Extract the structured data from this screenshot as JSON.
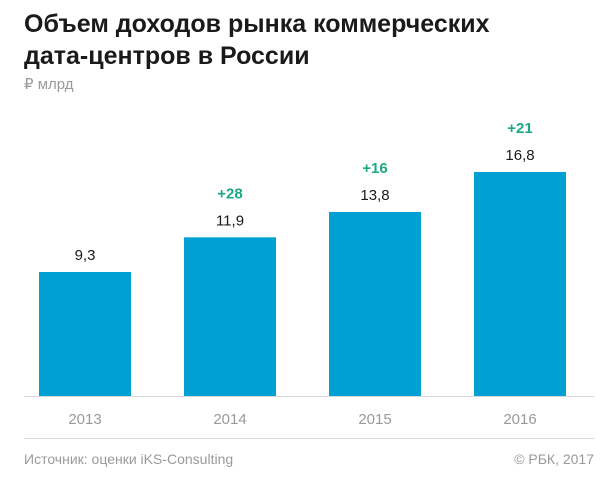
{
  "title_lines": [
    "Объем доходов рынка коммерческих",
    "дата-центров в России"
  ],
  "unit": "₽ млрд",
  "source": "Источник: оценки iKS-Consulting",
  "copyright": "© РБК, 2017",
  "colors": {
    "bar": "#00a0d2",
    "growth": "#1aa886",
    "text": "#1a1a1a",
    "muted": "#9a9a9a"
  },
  "chart_data": {
    "type": "bar",
    "categories": [
      "2013",
      "2014",
      "2015",
      "2016"
    ],
    "values": [
      9.3,
      11.9,
      13.8,
      16.8
    ],
    "value_labels": [
      "9,3",
      "11,9",
      "13,8",
      "16,8"
    ],
    "growth_labels": [
      "",
      "+28",
      "+16",
      "+21"
    ],
    "title": "Объем доходов рынка коммерческих дата-центров в России",
    "ylabel": "₽ млрд",
    "xlabel": "",
    "ylim": [
      0,
      16.8
    ]
  }
}
